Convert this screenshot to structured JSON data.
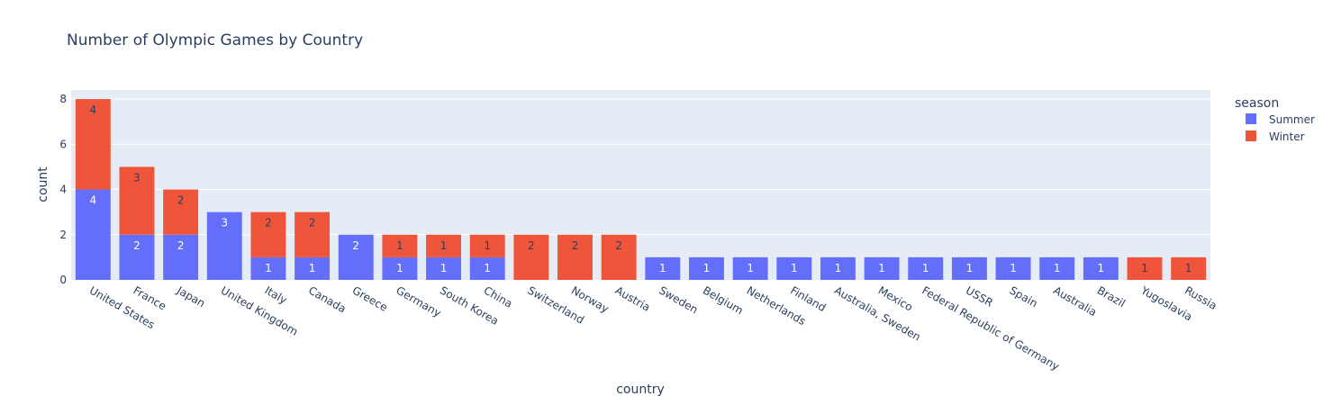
{
  "chart_data": {
    "type": "bar",
    "title": "Number of Olympic Games by Country",
    "xlabel": "country",
    "ylabel": "count",
    "ylim": [
      0,
      8.4
    ],
    "yticks": [
      0,
      2,
      4,
      6,
      8
    ],
    "grid": true,
    "barmode": "stack",
    "legend_title": "season",
    "legend_position": "top-right",
    "plot_bg": "#e5ecf6",
    "categories": [
      "United States",
      "France",
      "Japan",
      "United Kingdom",
      "Italy",
      "Canada",
      "Greece",
      "Germany",
      "South Korea",
      "China",
      "Switzerland",
      "Norway",
      "Austria",
      "Sweden",
      "Belgium",
      "Netherlands",
      "Finland",
      "Australia, Sweden",
      "Mexico",
      "Federal Republic of Germany",
      "USSR",
      "Spain",
      "Australia",
      "Brazil",
      "Yugoslavia",
      "Russia"
    ],
    "series": [
      {
        "name": "Summer",
        "color": "#636efa",
        "label_color": "#ffffff",
        "values": [
          4,
          2,
          2,
          3,
          1,
          1,
          2,
          1,
          1,
          1,
          0,
          0,
          0,
          1,
          1,
          1,
          1,
          1,
          1,
          1,
          1,
          1,
          1,
          1,
          0,
          0
        ]
      },
      {
        "name": "Winter",
        "color": "#ef553b",
        "label_color": "#2a3f5f",
        "values": [
          4,
          3,
          2,
          0,
          2,
          2,
          0,
          1,
          1,
          1,
          2,
          2,
          2,
          0,
          0,
          0,
          0,
          0,
          0,
          0,
          0,
          0,
          0,
          0,
          1,
          1
        ]
      }
    ]
  }
}
